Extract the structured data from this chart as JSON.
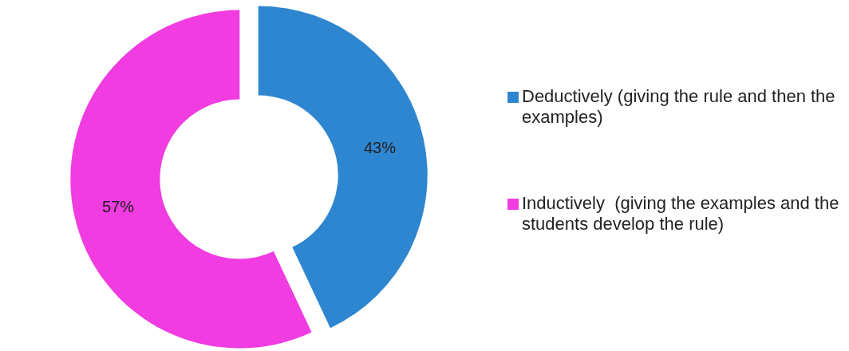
{
  "chart_data": {
    "type": "donut",
    "categories": [
      "Deductively (giving the rule and then the examples)",
      "Inductively  (giving the examples and the students develop the rule)"
    ],
    "values": [
      43,
      57
    ],
    "value_labels": [
      "43%",
      "57%"
    ],
    "colors": [
      "#2e86d0",
      "#f03ce0"
    ],
    "legend": "right"
  }
}
